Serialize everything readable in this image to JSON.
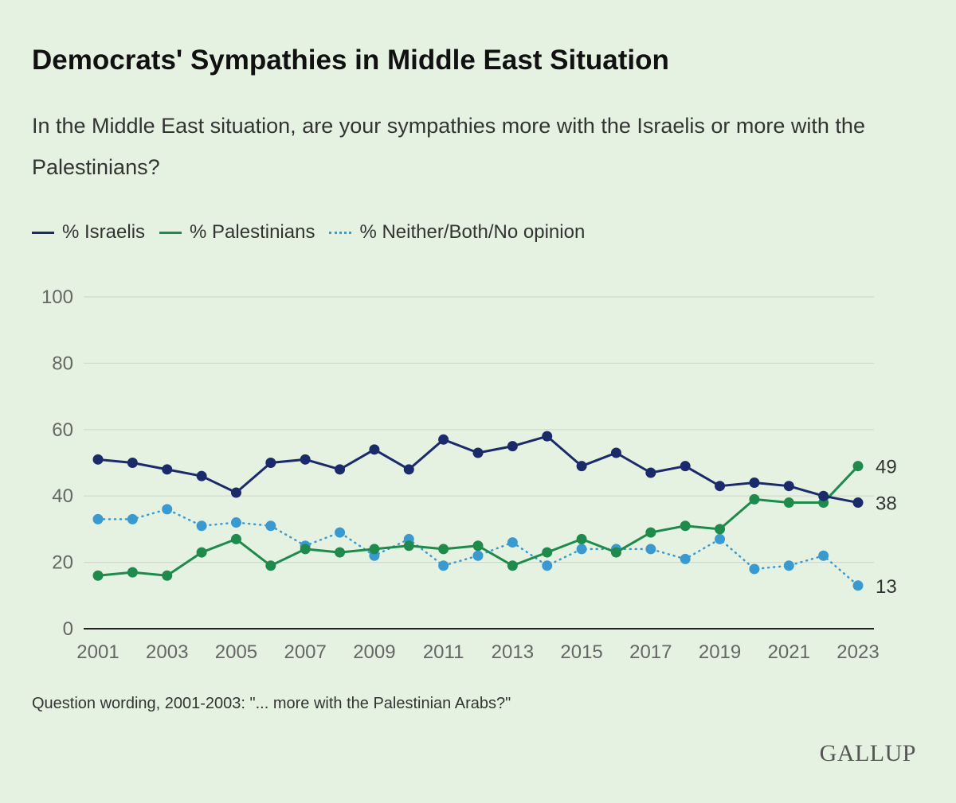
{
  "chart_data": {
    "type": "line",
    "title": "Democrats' Sympathies in Middle East Situation",
    "subtitle": "In the Middle East situation, are your sympathies more with the Israelis or more with the Palestinians?",
    "x": [
      2001,
      2002,
      2003,
      2004,
      2005,
      2006,
      2007,
      2008,
      2009,
      2010,
      2011,
      2012,
      2013,
      2014,
      2015,
      2016,
      2017,
      2018,
      2019,
      2020,
      2021,
      2022,
      2023
    ],
    "x_ticks": [
      "2001",
      "2003",
      "2005",
      "2007",
      "2009",
      "2011",
      "2013",
      "2015",
      "2017",
      "2019",
      "2021",
      "2023"
    ],
    "y_ticks": [
      "0",
      "20",
      "40",
      "60",
      "80",
      "100"
    ],
    "ylim": [
      0,
      100
    ],
    "grid": true,
    "legend_position": "top-left",
    "series": [
      {
        "name": "% Israelis",
        "color": "#1b2a6b",
        "style": "solid",
        "values": [
          51,
          50,
          48,
          46,
          41,
          50,
          51,
          48,
          54,
          48,
          57,
          53,
          55,
          58,
          49,
          53,
          47,
          49,
          43,
          44,
          43,
          40,
          38
        ],
        "end_label": "38"
      },
      {
        "name": "% Palestinians",
        "color": "#1e8a4c",
        "style": "solid",
        "values": [
          16,
          17,
          16,
          23,
          27,
          19,
          24,
          23,
          24,
          25,
          24,
          25,
          19,
          23,
          27,
          23,
          29,
          31,
          30,
          39,
          38,
          38,
          49
        ],
        "end_label": "49"
      },
      {
        "name": "% Neither/Both/No opinion",
        "color": "#3a9ad0",
        "style": "dotted",
        "values": [
          33,
          33,
          36,
          31,
          32,
          31,
          25,
          29,
          22,
          27,
          19,
          22,
          26,
          19,
          24,
          24,
          24,
          21,
          27,
          18,
          19,
          22,
          13
        ],
        "end_label": "13"
      }
    ]
  },
  "footer": {
    "note": "Question wording, 2001-2003: \"... more with the Palestinian Arabs?\"",
    "logo": "GALLUP"
  }
}
